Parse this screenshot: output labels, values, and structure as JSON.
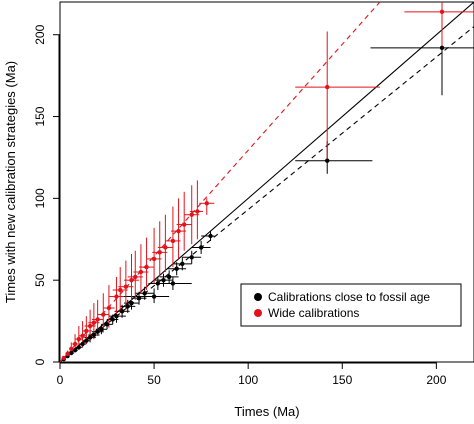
{
  "chart_data": {
    "type": "scatter",
    "title": "",
    "xlabel": "Times (Ma)",
    "ylabel": "Times with new calibration strategies (Ma)",
    "xlim": [
      0,
      220
    ],
    "ylim": [
      0,
      220
    ],
    "xticks": [
      0,
      50,
      100,
      150,
      200
    ],
    "yticks": [
      0,
      50,
      100,
      150,
      200
    ],
    "grid": false,
    "legend_position": "bottom-right",
    "series": [
      {
        "name": "Calibrations close to fossil age",
        "color": "#000000",
        "points": [
          {
            "x": 2,
            "y": 1.8,
            "xmin": 1.5,
            "xmax": 2.5,
            "ymin": 1.5,
            "ymax": 2.2
          },
          {
            "x": 4,
            "y": 3.6,
            "xmin": 3,
            "xmax": 5,
            "ymin": 3,
            "ymax": 4.3
          },
          {
            "x": 6,
            "y": 5.5,
            "xmin": 5,
            "xmax": 7.5,
            "ymin": 4.5,
            "ymax": 6.5
          },
          {
            "x": 8,
            "y": 7.2,
            "xmin": 6.5,
            "xmax": 9.5,
            "ymin": 6,
            "ymax": 8.5
          },
          {
            "x": 10,
            "y": 9,
            "xmin": 8,
            "xmax": 12,
            "ymin": 7.5,
            "ymax": 10.5
          },
          {
            "x": 12,
            "y": 11,
            "xmin": 10,
            "xmax": 14,
            "ymin": 9,
            "ymax": 13
          },
          {
            "x": 14,
            "y": 13,
            "xmin": 12,
            "xmax": 16,
            "ymin": 11,
            "ymax": 15
          },
          {
            "x": 16,
            "y": 15,
            "xmin": 13,
            "xmax": 19,
            "ymin": 12,
            "ymax": 18
          },
          {
            "x": 18,
            "y": 16.5,
            "xmin": 15,
            "xmax": 21,
            "ymin": 14,
            "ymax": 19
          },
          {
            "x": 20,
            "y": 18.5,
            "xmin": 17,
            "xmax": 23,
            "ymin": 16,
            "ymax": 21
          },
          {
            "x": 22,
            "y": 20,
            "xmin": 19,
            "xmax": 25,
            "ymin": 17,
            "ymax": 23
          },
          {
            "x": 25,
            "y": 23,
            "xmin": 22,
            "xmax": 28,
            "ymin": 20,
            "ymax": 26
          },
          {
            "x": 28,
            "y": 26,
            "xmin": 25,
            "xmax": 31,
            "ymin": 23,
            "ymax": 29
          },
          {
            "x": 30,
            "y": 28,
            "xmin": 26,
            "xmax": 35,
            "ymin": 24,
            "ymax": 32
          },
          {
            "x": 33,
            "y": 31,
            "xmin": 29,
            "xmax": 37,
            "ymin": 27,
            "ymax": 35
          },
          {
            "x": 36,
            "y": 34,
            "xmin": 32,
            "xmax": 40,
            "ymin": 30,
            "ymax": 38
          },
          {
            "x": 38,
            "y": 36,
            "xmin": 34,
            "xmax": 42,
            "ymin": 32,
            "ymax": 40
          },
          {
            "x": 42,
            "y": 39,
            "xmin": 38,
            "xmax": 46,
            "ymin": 35,
            "ymax": 43
          },
          {
            "x": 45,
            "y": 42,
            "xmin": 40,
            "xmax": 50,
            "ymin": 38,
            "ymax": 46
          },
          {
            "x": 50,
            "y": 40,
            "xmin": 30,
            "xmax": 58,
            "ymin": 36,
            "ymax": 45
          },
          {
            "x": 52,
            "y": 48,
            "xmin": 47,
            "xmax": 57,
            "ymin": 44,
            "ymax": 52
          },
          {
            "x": 55,
            "y": 50,
            "xmin": 50,
            "xmax": 60,
            "ymin": 46,
            "ymax": 54
          },
          {
            "x": 58,
            "y": 52,
            "xmin": 53,
            "xmax": 63,
            "ymin": 48,
            "ymax": 56
          },
          {
            "x": 60,
            "y": 48,
            "xmin": 50,
            "xmax": 70,
            "ymin": 44,
            "ymax": 52
          },
          {
            "x": 62,
            "y": 57,
            "xmin": 57,
            "xmax": 67,
            "ymin": 53,
            "ymax": 61
          },
          {
            "x": 65,
            "y": 60,
            "xmin": 60,
            "xmax": 70,
            "ymin": 56,
            "ymax": 64
          },
          {
            "x": 70,
            "y": 64,
            "xmin": 65,
            "xmax": 75,
            "ymin": 60,
            "ymax": 68
          },
          {
            "x": 75,
            "y": 70,
            "xmin": 70,
            "xmax": 80,
            "ymin": 66,
            "ymax": 74
          },
          {
            "x": 80,
            "y": 77,
            "xmin": 75,
            "xmax": 82,
            "ymin": 74,
            "ymax": 80
          },
          {
            "x": 142,
            "y": 123,
            "xmin": 125,
            "xmax": 166,
            "ymin": 115,
            "ymax": 135
          },
          {
            "x": 203,
            "y": 192,
            "xmin": 165,
            "xmax": 220,
            "ymin": 163,
            "ymax": 218
          }
        ]
      },
      {
        "name": "Wide calibrations",
        "color": "#e3131b",
        "points": [
          {
            "x": 2,
            "y": 2.5,
            "xmin": 1.5,
            "xmax": 2.5,
            "ymin": 1.8,
            "ymax": 3.5
          },
          {
            "x": 4,
            "y": 5,
            "xmin": 3,
            "xmax": 5,
            "ymin": 3.5,
            "ymax": 7
          },
          {
            "x": 6,
            "y": 8,
            "xmin": 5,
            "xmax": 7,
            "ymin": 5,
            "ymax": 12
          },
          {
            "x": 8,
            "y": 11,
            "xmin": 6.5,
            "xmax": 9.5,
            "ymin": 6,
            "ymax": 17
          },
          {
            "x": 10,
            "y": 14,
            "xmin": 8,
            "xmax": 12,
            "ymin": 8,
            "ymax": 22
          },
          {
            "x": 12,
            "y": 16,
            "xmin": 10,
            "xmax": 14,
            "ymin": 9,
            "ymax": 25
          },
          {
            "x": 14,
            "y": 19,
            "xmin": 12,
            "xmax": 17,
            "ymin": 11,
            "ymax": 28
          },
          {
            "x": 16,
            "y": 22,
            "xmin": 13,
            "xmax": 19,
            "ymin": 13,
            "ymax": 32
          },
          {
            "x": 18,
            "y": 24,
            "xmin": 15,
            "xmax": 21,
            "ymin": 14,
            "ymax": 36
          },
          {
            "x": 20,
            "y": 26,
            "xmin": 17,
            "xmax": 23,
            "ymin": 16,
            "ymax": 38
          },
          {
            "x": 23,
            "y": 29,
            "xmin": 20,
            "xmax": 26,
            "ymin": 18,
            "ymax": 42
          },
          {
            "x": 26,
            "y": 33,
            "xmin": 23,
            "xmax": 29,
            "ymin": 21,
            "ymax": 47
          },
          {
            "x": 30,
            "y": 40,
            "xmin": 26,
            "xmax": 34,
            "ymin": 27,
            "ymax": 52
          },
          {
            "x": 32,
            "y": 44,
            "xmin": 28,
            "xmax": 36,
            "ymin": 30,
            "ymax": 58
          },
          {
            "x": 35,
            "y": 46,
            "xmin": 31,
            "xmax": 39,
            "ymin": 32,
            "ymax": 62
          },
          {
            "x": 38,
            "y": 50,
            "xmin": 34,
            "xmax": 42,
            "ymin": 36,
            "ymax": 66
          },
          {
            "x": 40,
            "y": 52,
            "xmin": 36,
            "xmax": 44,
            "ymin": 38,
            "ymax": 68
          },
          {
            "x": 43,
            "y": 55,
            "xmin": 39,
            "xmax": 47,
            "ymin": 42,
            "ymax": 72
          },
          {
            "x": 46,
            "y": 58,
            "xmin": 42,
            "xmax": 50,
            "ymin": 44,
            "ymax": 76
          },
          {
            "x": 50,
            "y": 63,
            "xmin": 46,
            "xmax": 54,
            "ymin": 48,
            "ymax": 82
          },
          {
            "x": 53,
            "y": 67,
            "xmin": 49,
            "xmax": 57,
            "ymin": 52,
            "ymax": 86
          },
          {
            "x": 56,
            "y": 70,
            "xmin": 52,
            "xmax": 60,
            "ymin": 55,
            "ymax": 90
          },
          {
            "x": 60,
            "y": 74,
            "xmin": 56,
            "xmax": 64,
            "ymin": 58,
            "ymax": 95
          },
          {
            "x": 63,
            "y": 80,
            "xmin": 59,
            "xmax": 67,
            "ymin": 63,
            "ymax": 100
          },
          {
            "x": 66,
            "y": 84,
            "xmin": 62,
            "xmax": 70,
            "ymin": 68,
            "ymax": 104
          },
          {
            "x": 70,
            "y": 90,
            "xmin": 66,
            "xmax": 74,
            "ymin": 72,
            "ymax": 108
          },
          {
            "x": 73,
            "y": 92,
            "xmin": 69,
            "xmax": 76,
            "ymin": 75,
            "ymax": 111
          },
          {
            "x": 78,
            "y": 97,
            "xmin": 74,
            "xmax": 82,
            "ymin": 90,
            "ymax": 100
          },
          {
            "x": 142,
            "y": 168,
            "xmin": 125,
            "xmax": 170,
            "ymin": 123,
            "ymax": 202
          },
          {
            "x": 203,
            "y": 214,
            "xmin": 183,
            "xmax": 220,
            "ymin": 192,
            "ymax": 220
          }
        ]
      }
    ],
    "lines": [
      {
        "name": "identity",
        "color": "#000000",
        "dash": "solid",
        "x": [
          0,
          220
        ],
        "y": [
          0,
          220
        ]
      },
      {
        "name": "black-fit",
        "color": "#000000",
        "dash": "dashed",
        "x": [
          0,
          220
        ],
        "y": [
          0,
          205
        ]
      },
      {
        "name": "red-fit",
        "color": "#e3131b",
        "dash": "dashed",
        "x": [
          0,
          170
        ],
        "y": [
          0,
          220
        ]
      }
    ]
  }
}
